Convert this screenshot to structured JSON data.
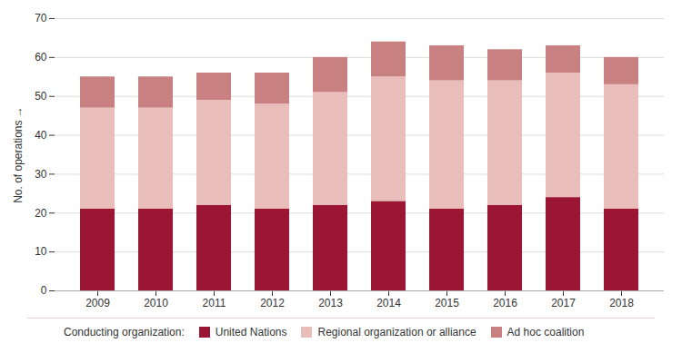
{
  "chart_data": {
    "type": "bar",
    "stacked": true,
    "categories": [
      "2009",
      "2010",
      "2011",
      "2012",
      "2013",
      "2014",
      "2015",
      "2016",
      "2017",
      "2018"
    ],
    "series": [
      {
        "name": "United Nations",
        "color": "#9B1535",
        "values": [
          21,
          21,
          22,
          21,
          22,
          23,
          21,
          22,
          24,
          21
        ]
      },
      {
        "name": "Regional organization or alliance",
        "color": "#E8BDBA",
        "values": [
          26,
          26,
          27,
          27,
          29,
          32,
          33,
          32,
          32,
          32
        ]
      },
      {
        "name": "Ad hoc coalition",
        "color": "#C88080",
        "values": [
          8,
          8,
          7,
          8,
          9,
          9,
          9,
          8,
          7,
          7
        ]
      }
    ],
    "ylabel": "No. of operations",
    "ylim": [
      0,
      70
    ],
    "yticks": [
      0,
      10,
      20,
      30,
      40,
      50,
      60,
      70
    ],
    "grid": true,
    "legend": "bottom",
    "legend_title": "Conducting organization:"
  }
}
